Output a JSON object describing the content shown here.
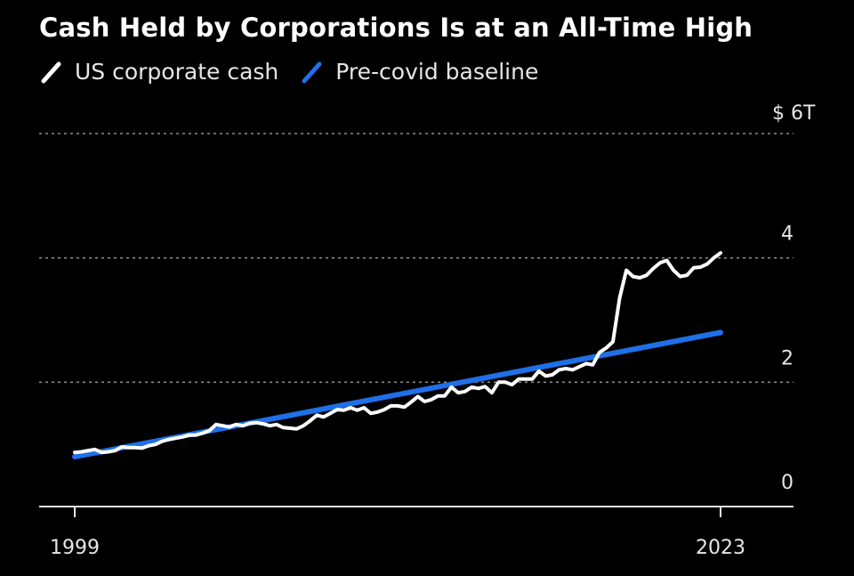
{
  "chart_data": {
    "type": "line",
    "title": "Cash Held by Corporations Is at an All-Time High",
    "legend": {
      "placement": "top-left"
    },
    "grid": true,
    "xlim": [
      1999,
      2023
    ],
    "ylim": [
      0,
      6
    ],
    "x_ticks": [
      {
        "value": 1999,
        "label": "1999"
      },
      {
        "value": 2023,
        "label": "2023"
      }
    ],
    "y_ticks": [
      {
        "value": 0,
        "label": "0"
      },
      {
        "value": 2,
        "label": "2"
      },
      {
        "value": 4,
        "label": "4"
      },
      {
        "value": 6,
        "label": "$ 6T"
      }
    ],
    "series": [
      {
        "name": "US corporate cash",
        "color": "#ffffff",
        "x": [
          1999.0,
          1999.25,
          1999.5,
          1999.75,
          2000.0,
          2000.25,
          2000.5,
          2000.75,
          2001.0,
          2001.25,
          2001.5,
          2001.75,
          2002.0,
          2002.25,
          2002.5,
          2002.75,
          2003.0,
          2003.25,
          2003.5,
          2003.75,
          2004.0,
          2004.25,
          2004.5,
          2004.75,
          2005.0,
          2005.25,
          2005.5,
          2005.75,
          2006.0,
          2006.25,
          2006.5,
          2006.75,
          2007.0,
          2007.25,
          2007.5,
          2007.75,
          2008.0,
          2008.25,
          2008.5,
          2008.75,
          2009.0,
          2009.25,
          2009.5,
          2009.75,
          2010.0,
          2010.25,
          2010.5,
          2010.75,
          2011.0,
          2011.25,
          2011.5,
          2011.75,
          2012.0,
          2012.25,
          2012.5,
          2012.75,
          2013.0,
          2013.25,
          2013.5,
          2013.75,
          2014.0,
          2014.25,
          2014.5,
          2014.75,
          2015.0,
          2015.25,
          2015.5,
          2015.75,
          2016.0,
          2016.25,
          2016.5,
          2016.75,
          2017.0,
          2017.25,
          2017.5,
          2017.75,
          2018.0,
          2018.25,
          2018.5,
          2018.75,
          2019.0,
          2019.25,
          2019.5,
          2019.75,
          2020.0,
          2020.25,
          2020.5,
          2020.75,
          2021.0,
          2021.25,
          2021.5,
          2021.75,
          2022.0,
          2022.25,
          2022.5,
          2022.75,
          2023.0
        ],
        "values": [
          0.87,
          0.88,
          0.9,
          0.92,
          0.87,
          0.88,
          0.9,
          0.96,
          0.95,
          0.95,
          0.94,
          0.98,
          1.0,
          1.05,
          1.08,
          1.1,
          1.12,
          1.15,
          1.15,
          1.18,
          1.22,
          1.32,
          1.3,
          1.28,
          1.32,
          1.3,
          1.34,
          1.35,
          1.33,
          1.3,
          1.32,
          1.27,
          1.26,
          1.25,
          1.3,
          1.38,
          1.47,
          1.44,
          1.5,
          1.56,
          1.55,
          1.59,
          1.55,
          1.59,
          1.5,
          1.52,
          1.56,
          1.62,
          1.62,
          1.6,
          1.68,
          1.77,
          1.69,
          1.72,
          1.78,
          1.78,
          1.92,
          1.83,
          1.85,
          1.92,
          1.9,
          1.93,
          1.83,
          2.0,
          2.0,
          1.96,
          2.05,
          2.05,
          2.05,
          2.18,
          2.1,
          2.12,
          2.2,
          2.22,
          2.2,
          2.25,
          2.3,
          2.28,
          2.48,
          2.55,
          2.65,
          3.36,
          3.8,
          3.7,
          3.68,
          3.72,
          3.83,
          3.92,
          3.96,
          3.8,
          3.7,
          3.72,
          3.84,
          3.85,
          3.9,
          4.0,
          4.08
        ]
      },
      {
        "name": "Pre-covid baseline",
        "color": "#1f6fe8",
        "x": [
          1999,
          2023
        ],
        "values": [
          0.8,
          2.8
        ]
      }
    ]
  }
}
